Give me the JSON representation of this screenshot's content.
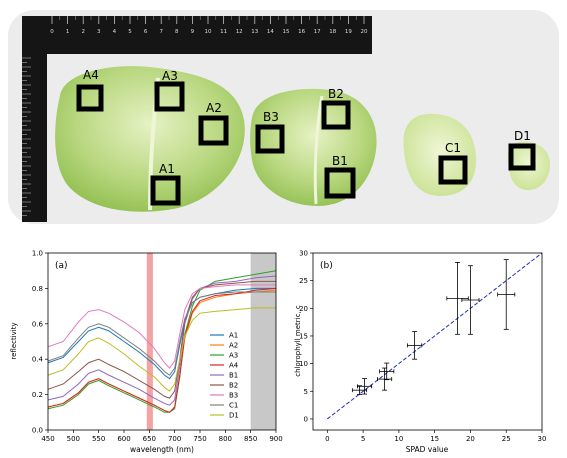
{
  "photo": {
    "labels": [
      "A4",
      "A3",
      "A2",
      "A1",
      "B3",
      "B2",
      "B1",
      "C1",
      "D1"
    ],
    "ruler_ticks": [
      "0",
      "1",
      "2",
      "3",
      "4",
      "5",
      "6",
      "7",
      "8",
      "9",
      "10",
      "11",
      "12",
      "13",
      "14",
      "15",
      "16",
      "17",
      "18",
      "19",
      "20"
    ]
  },
  "chart_data": [
    {
      "type": "line",
      "panel_label": "(a)",
      "xlabel": "wavelength (nm)",
      "ylabel": "reflectivity",
      "xlim": [
        450,
        900
      ],
      "ylim": [
        0.0,
        1.0
      ],
      "xticks": [
        "450",
        "500",
        "550",
        "600",
        "650",
        "700",
        "750",
        "800",
        "850",
        "900"
      ],
      "yticks": [
        "0.0",
        "0.2",
        "0.4",
        "0.6",
        "0.8",
        "1.0"
      ],
      "highlight_bands": [
        {
          "from": 645,
          "to": 657,
          "color": "#f4a3a3"
        },
        {
          "from": 850,
          "to": 900,
          "color": "#c8c8c8"
        }
      ],
      "legend_position": "center-right",
      "x": [
        450,
        480,
        510,
        530,
        550,
        570,
        600,
        630,
        660,
        680,
        690,
        700,
        710,
        720,
        735,
        750,
        780,
        820,
        860,
        900
      ],
      "series": [
        {
          "name": "A1",
          "color": "#1f77b4",
          "values": [
            0.38,
            0.41,
            0.5,
            0.56,
            0.58,
            0.56,
            0.5,
            0.44,
            0.37,
            0.31,
            0.29,
            0.33,
            0.48,
            0.62,
            0.72,
            0.75,
            0.77,
            0.79,
            0.8,
            0.8
          ]
        },
        {
          "name": "A2",
          "color": "#ff7f0e",
          "values": [
            0.13,
            0.15,
            0.21,
            0.27,
            0.29,
            0.26,
            0.22,
            0.18,
            0.14,
            0.11,
            0.1,
            0.13,
            0.3,
            0.52,
            0.66,
            0.72,
            0.75,
            0.77,
            0.78,
            0.79
          ]
        },
        {
          "name": "A3",
          "color": "#2ca02c",
          "values": [
            0.12,
            0.14,
            0.2,
            0.26,
            0.28,
            0.25,
            0.21,
            0.17,
            0.13,
            0.1,
            0.1,
            0.12,
            0.3,
            0.54,
            0.7,
            0.79,
            0.84,
            0.86,
            0.88,
            0.9
          ]
        },
        {
          "name": "A4",
          "color": "#d62728",
          "values": [
            0.13,
            0.15,
            0.21,
            0.27,
            0.29,
            0.26,
            0.22,
            0.18,
            0.14,
            0.11,
            0.1,
            0.13,
            0.31,
            0.53,
            0.67,
            0.73,
            0.76,
            0.77,
            0.79,
            0.8
          ]
        },
        {
          "name": "B1",
          "color": "#9467bd",
          "values": [
            0.17,
            0.19,
            0.26,
            0.32,
            0.34,
            0.31,
            0.27,
            0.23,
            0.18,
            0.15,
            0.14,
            0.17,
            0.36,
            0.6,
            0.74,
            0.8,
            0.83,
            0.84,
            0.86,
            0.87
          ]
        },
        {
          "name": "B2",
          "color": "#8c564b",
          "values": [
            0.23,
            0.26,
            0.33,
            0.38,
            0.4,
            0.37,
            0.33,
            0.28,
            0.23,
            0.19,
            0.18,
            0.22,
            0.4,
            0.62,
            0.75,
            0.8,
            0.82,
            0.83,
            0.84,
            0.84
          ]
        },
        {
          "name": "B3",
          "color": "#e377c2",
          "values": [
            0.47,
            0.5,
            0.61,
            0.67,
            0.68,
            0.66,
            0.61,
            0.55,
            0.46,
            0.38,
            0.35,
            0.39,
            0.54,
            0.68,
            0.77,
            0.8,
            0.81,
            0.82,
            0.82,
            0.82
          ]
        },
        {
          "name": "C1",
          "color": "#7f7f7f",
          "values": [
            0.39,
            0.42,
            0.52,
            0.58,
            0.6,
            0.58,
            0.52,
            0.46,
            0.39,
            0.33,
            0.31,
            0.35,
            0.5,
            0.63,
            0.72,
            0.75,
            0.77,
            0.78,
            0.78,
            0.78
          ]
        },
        {
          "name": "D1",
          "color": "#bcbd22",
          "values": [
            0.31,
            0.34,
            0.43,
            0.5,
            0.52,
            0.49,
            0.43,
            0.36,
            0.3,
            0.24,
            0.22,
            0.26,
            0.4,
            0.53,
            0.62,
            0.66,
            0.67,
            0.68,
            0.69,
            0.69
          ]
        }
      ]
    },
    {
      "type": "scatter",
      "panel_label": "(b)",
      "xlabel": "SPAD value",
      "ylabel": "chlorophyll metric, c",
      "xlim": [
        -2,
        30
      ],
      "ylim": [
        -2,
        30
      ],
      "xticks": [
        "0",
        "5",
        "10",
        "15",
        "20",
        "25",
        "30"
      ],
      "yticks": [
        "0",
        "5",
        "10",
        "15",
        "20",
        "25",
        "30"
      ],
      "fit_line": {
        "x": [
          0,
          30
        ],
        "y": [
          0,
          30
        ],
        "color": "#1f2fb4"
      },
      "points": [
        {
          "x": 4.5,
          "y": 5.2,
          "xerr": 1.0,
          "yerr": 0.8
        },
        {
          "x": 5.2,
          "y": 5.9,
          "xerr": 1.0,
          "yerr": 1.4
        },
        {
          "x": 8.0,
          "y": 7.2,
          "xerr": 1.0,
          "yerr": 2.0
        },
        {
          "x": 8.3,
          "y": 8.6,
          "xerr": 1.0,
          "yerr": 1.5
        },
        {
          "x": 12.2,
          "y": 13.3,
          "xerr": 1.0,
          "yerr": 2.5
        },
        {
          "x": 18.2,
          "y": 21.8,
          "xerr": 1.5,
          "yerr": 6.5
        },
        {
          "x": 20.0,
          "y": 21.5,
          "xerr": 1.2,
          "yerr": 6.2
        },
        {
          "x": 25.0,
          "y": 22.5,
          "xerr": 1.2,
          "yerr": 6.3
        }
      ]
    }
  ]
}
